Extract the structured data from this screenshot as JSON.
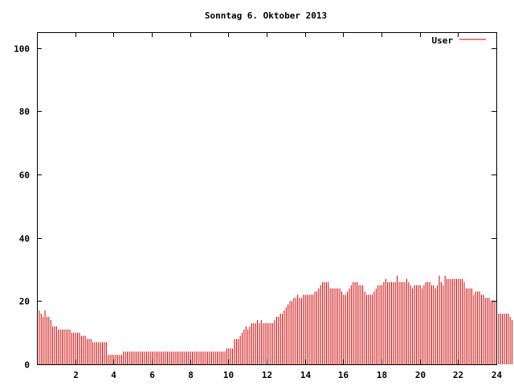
{
  "chart_data": {
    "type": "bar",
    "title": "Sonntag 6. Oktober 2013",
    "xlabel": "",
    "ylabel": "",
    "xlim": [
      0,
      24
    ],
    "ylim": [
      0,
      105
    ],
    "x_ticks": [
      "2",
      "4",
      "6",
      "8",
      "10",
      "12",
      "14",
      "16",
      "18",
      "20",
      "22",
      "24"
    ],
    "y_ticks": [
      "0",
      "20",
      "40",
      "60",
      "80",
      "100"
    ],
    "grid": false,
    "legend_position": "top-right",
    "series": [
      {
        "name": "User",
        "color": "#cc0000",
        "interval_hours": 0.1,
        "values": [
          18,
          17,
          16,
          15,
          17,
          15,
          15,
          14,
          12,
          12,
          12,
          11,
          11,
          11,
          11,
          11,
          11,
          11,
          10,
          10,
          10,
          10,
          10,
          9,
          9,
          9,
          8,
          8,
          8,
          7,
          7,
          7,
          7,
          7,
          7,
          7,
          7,
          3,
          3,
          3,
          3,
          3,
          3,
          3,
          3,
          4,
          4,
          4,
          4,
          4,
          4,
          4,
          4,
          4,
          4,
          4,
          4,
          4,
          4,
          4,
          4,
          4,
          4,
          4,
          4,
          4,
          4,
          4,
          4,
          4,
          4,
          4,
          4,
          4,
          4,
          4,
          4,
          4,
          4,
          4,
          4,
          4,
          4,
          4,
          4,
          4,
          4,
          4,
          4,
          4,
          4,
          4,
          4,
          4,
          4,
          4,
          4,
          4,
          4,
          5,
          5,
          5,
          5,
          8,
          8,
          8,
          9,
          10,
          11,
          12,
          11,
          12,
          13,
          13,
          13,
          14,
          13,
          14,
          13,
          13,
          13,
          13,
          13,
          13,
          14,
          15,
          15,
          16,
          16,
          17,
          18,
          19,
          20,
          20,
          21,
          21,
          22,
          21,
          21,
          22,
          22,
          22,
          22,
          22,
          22,
          23,
          23,
          24,
          25,
          26,
          26,
          26,
          26,
          24,
          24,
          24,
          24,
          24,
          24,
          23,
          22,
          22,
          23,
          24,
          25,
          26,
          26,
          26,
          25,
          25,
          25,
          23,
          22,
          22,
          22,
          22,
          23,
          24,
          25,
          25,
          25,
          26,
          27,
          26,
          26,
          26,
          26,
          26,
          28,
          26,
          26,
          26,
          26,
          27,
          26,
          25,
          24,
          25,
          25,
          25,
          25,
          24,
          25,
          26,
          26,
          26,
          25,
          25,
          24,
          25,
          28,
          26,
          25,
          28,
          27,
          27,
          27,
          27,
          27,
          27,
          27,
          27,
          27,
          26,
          24,
          24,
          24,
          24,
          22,
          23,
          23,
          23,
          22,
          22,
          21,
          21,
          21,
          20,
          20,
          20,
          18,
          16,
          16,
          16,
          16,
          16,
          16,
          15,
          14
        ]
      }
    ]
  }
}
